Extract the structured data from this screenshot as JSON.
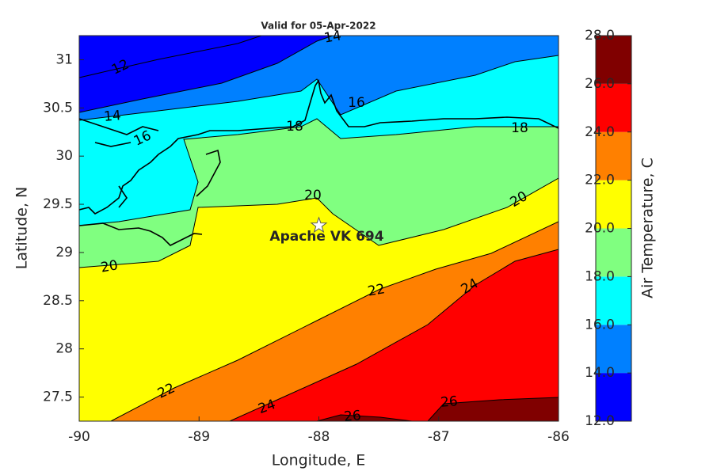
{
  "title": "Valid for 05-Apr-2022",
  "xlabel": "Longitude, E",
  "ylabel": "Latitude, N",
  "xlim": [
    -90,
    -86
  ],
  "ylim": [
    27.25,
    31.25
  ],
  "xticks": [
    -90,
    -89,
    -88,
    -87,
    -86
  ],
  "yticks": [
    27.5,
    28,
    28.5,
    29,
    29.5,
    30,
    30.5,
    31
  ],
  "colorbar": {
    "label": "Air Temperature, C",
    "lim": [
      12,
      28
    ],
    "ticks": [
      {
        "value": 12,
        "label": "12.0"
      },
      {
        "value": 14,
        "label": "14.0"
      },
      {
        "value": 16,
        "label": "16.0"
      },
      {
        "value": 18,
        "label": "18.0"
      },
      {
        "value": 20,
        "label": "20.0"
      },
      {
        "value": 22,
        "label": "22.0"
      },
      {
        "value": 24,
        "label": "24.0"
      },
      {
        "value": 26,
        "label": "26.0"
      },
      {
        "value": 28,
        "label": "28.0"
      }
    ],
    "colors": [
      "#0000ff",
      "#0080ff",
      "#00ffff",
      "#80ff80",
      "#ffff00",
      "#ff8000",
      "#ff0000",
      "#800000"
    ]
  },
  "contour_labels": [
    12,
    14,
    14,
    16,
    16,
    18,
    18,
    20,
    20,
    20,
    22,
    22,
    24,
    24,
    26,
    26
  ],
  "station": {
    "name": "Apache VK 694",
    "lon": -88,
    "lat": 29.28
  }
}
